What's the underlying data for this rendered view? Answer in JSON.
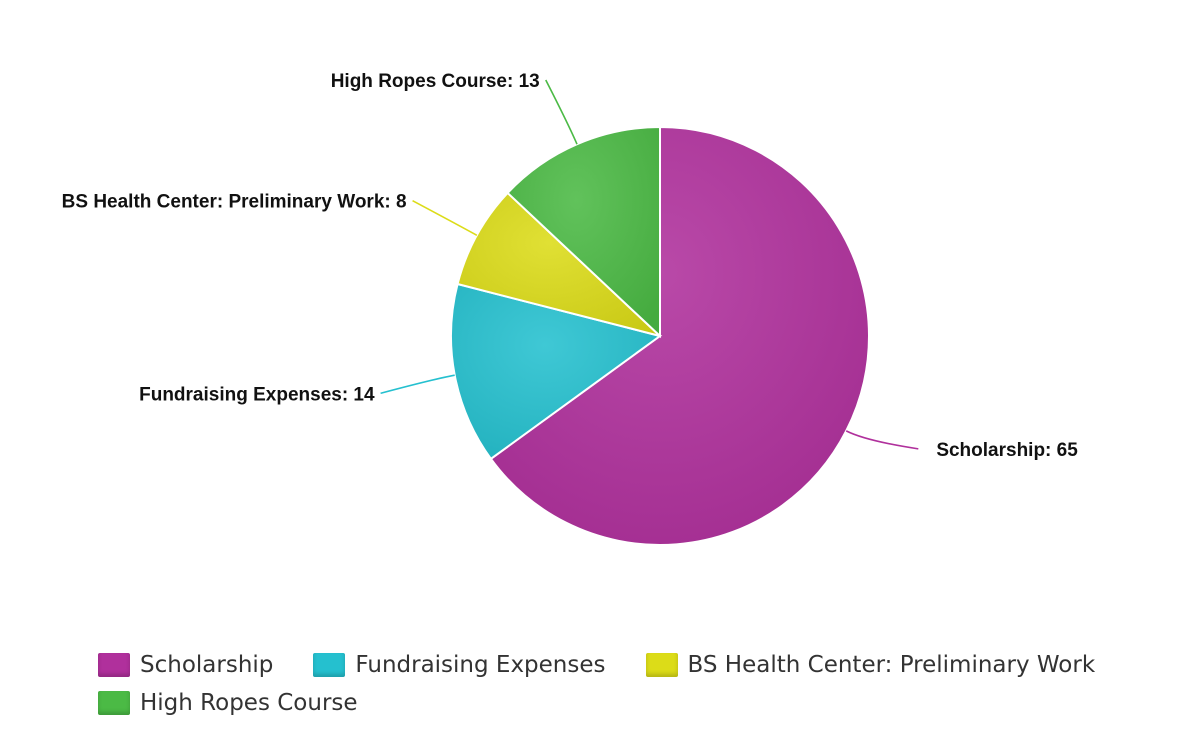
{
  "chart_data": {
    "type": "pie",
    "title": "",
    "slices": [
      {
        "name": "Scholarship",
        "value": 65,
        "label": "Scholarship: 65",
        "color": "#b0309c"
      },
      {
        "name": "Fundraising Expenses",
        "value": 14,
        "label": "Fundraising Expenses: 14",
        "color": "#25c0cf"
      },
      {
        "name": "BS Health Center: Preliminary Work",
        "value": 8,
        "label": "BS Health Center: Preliminary Work: 8",
        "color": "#dcdc18"
      },
      {
        "name": "High Ropes Course",
        "value": 13,
        "label": "High Ropes Course: 13",
        "color": "#4bba45"
      }
    ],
    "legend_position": "bottom-left"
  }
}
